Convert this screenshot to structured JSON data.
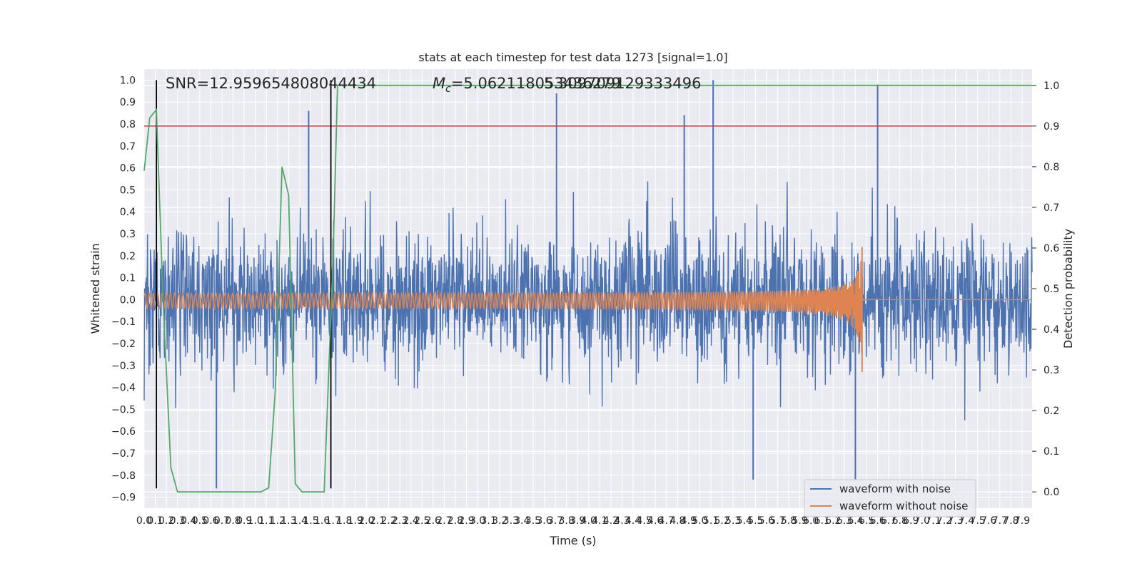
{
  "chart_data": {
    "type": "line",
    "title": "stats at each timestep for test data 1273 [signal=1.0]",
    "xlabel": "Time (s)",
    "ylabel": "Whitened strain",
    "y2label": "Detection probability",
    "xlim": [
      0.0,
      7.99
    ],
    "ylim": [
      -0.95,
      1.05
    ],
    "y2lim": [
      -0.04,
      1.04
    ],
    "grid": true,
    "x_tick_step": 0.1,
    "x_tick_max": 7.9,
    "y_ticks": [
      -0.9,
      -0.8,
      -0.7,
      -0.6,
      -0.5,
      -0.4,
      -0.3,
      -0.2,
      -0.1,
      0.0,
      0.1,
      0.2,
      0.3,
      0.4,
      0.5,
      0.6,
      0.7,
      0.8,
      0.9,
      1.0
    ],
    "y_tick_labels": [
      "−0.9",
      "−0.8",
      "−0.7",
      "−0.6",
      "−0.5",
      "−0.4",
      "−0.3",
      "−0.2",
      "−0.1",
      "0.0",
      "0.1",
      "0.2",
      "0.3",
      "0.4",
      "0.5",
      "0.6",
      "0.7",
      "0.8",
      "0.9",
      "1.0"
    ],
    "y2_ticks": [
      0.0,
      0.1,
      0.2,
      0.3,
      0.4,
      0.5,
      0.6,
      0.7,
      0.8,
      0.9,
      1.0
    ],
    "y2_tick_labels": [
      "0.0",
      "0.1",
      "0.2",
      "0.3",
      "0.4",
      "0.5",
      "0.6",
      "0.7",
      "0.8",
      "0.9",
      "1.0"
    ],
    "annotations": {
      "snr": "SNR=12.959654808044434",
      "mc_symbol": "M",
      "mc_subscript": "c",
      "mc_value": "=5.062118053436279",
      "overlap_value": "5.309709129333496"
    },
    "series": [
      {
        "name": "waveform with noise",
        "color": "#4c72b0",
        "kind": "noise",
        "approx_std": 0.16,
        "approx_max": 1.0,
        "approx_min": -0.86,
        "notable_peaks": [
          {
            "x": 3.71,
            "y": 0.94
          },
          {
            "x": 5.12,
            "y": 1.0
          },
          {
            "x": 6.6,
            "y": 0.98
          },
          {
            "x": 1.48,
            "y": 0.86
          },
          {
            "x": 4.86,
            "y": 0.84
          },
          {
            "x": 0.65,
            "y": -0.86
          },
          {
            "x": 5.48,
            "y": -0.82
          },
          {
            "x": 6.4,
            "y": -0.82
          }
        ]
      },
      {
        "name": "waveform without noise",
        "color": "#dd8452",
        "kind": "chirp",
        "x_merger": 6.46,
        "start_amplitude": 0.025,
        "peak_amplitude_pos": 0.24,
        "peak_amplitude_neg": -0.33
      }
    ],
    "detection_probability": {
      "color": "#55a868",
      "axis": "right",
      "x": [
        0.0,
        0.05,
        0.11,
        0.17,
        0.24,
        0.3,
        0.6,
        1.05,
        1.12,
        1.18,
        1.24,
        1.3,
        1.36,
        1.42,
        1.5,
        1.62,
        1.7,
        1.74,
        7.99
      ],
      "y": [
        0.79,
        0.92,
        0.94,
        0.47,
        0.06,
        0.0,
        0.0,
        0.0,
        0.01,
        0.25,
        0.8,
        0.73,
        0.02,
        0.0,
        0.0,
        0.0,
        0.58,
        1.0,
        1.0
      ]
    },
    "threshold": {
      "color": "#c44e52",
      "axis": "right",
      "y": 0.9
    },
    "vertical_markers": {
      "color": "#000000",
      "x": [
        0.11,
        1.68
      ],
      "ylim": [
        -0.86,
        1.0
      ]
    },
    "legend": {
      "placement": "lower-right",
      "entries": [
        {
          "label": "waveform with noise",
          "color": "#4c72b0"
        },
        {
          "label": "waveform without noise",
          "color": "#dd8452"
        }
      ]
    },
    "colors": {
      "plot_background": "#eaeaf2",
      "grid": "#ffffff",
      "text": "#262626"
    }
  }
}
